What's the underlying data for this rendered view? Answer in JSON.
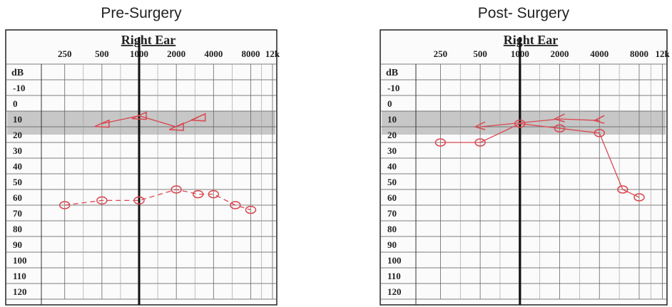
{
  "chart_data": [
    {
      "type": "line",
      "title": "Pre-Surgery",
      "subtitle": "Right Ear",
      "y_label": "dB",
      "log_x": true,
      "xlim": [
        180,
        13000
      ],
      "xticks": [
        250,
        500,
        1000,
        2000,
        4000,
        8000,
        {
          "value": 12000,
          "label": "12k"
        }
      ],
      "emphasized_x": 1000,
      "ylim": [
        -10,
        120
      ],
      "yticks": [
        -10,
        0,
        10,
        20,
        30,
        40,
        50,
        60,
        70,
        80,
        90,
        100,
        110,
        120
      ],
      "band": [
        5,
        15
      ],
      "grid": true,
      "series": [
        {
          "color": "#d9474f",
          "marker": "circle",
          "dashed": true,
          "x": [
            250,
            500,
            1000,
            2000,
            3000,
            4000,
            6000,
            8000
          ],
          "values": [
            65,
            62,
            62,
            55,
            58,
            58,
            65,
            68
          ]
        },
        {
          "color": "#d9474f",
          "marker": "triangle",
          "dashed": false,
          "x": [
            500,
            1000,
            2000,
            3000
          ],
          "values": [
            13,
            8,
            15,
            9
          ]
        }
      ]
    },
    {
      "type": "line",
      "title": "Post- Surgery",
      "subtitle": "Right Ear",
      "y_label": "dB",
      "log_x": true,
      "xlim": [
        180,
        13000
      ],
      "xticks": [
        250,
        500,
        1000,
        2000,
        4000,
        8000,
        {
          "value": 12000,
          "label": "12k"
        }
      ],
      "emphasized_x": 1000,
      "ylim": [
        -10,
        120
      ],
      "yticks": [
        -10,
        0,
        10,
        20,
        30,
        40,
        50,
        60,
        70,
        80,
        90,
        100,
        110,
        120
      ],
      "band": [
        5,
        15
      ],
      "grid": true,
      "series": [
        {
          "color": "#d9474f",
          "marker": "circle",
          "dashed": false,
          "x": [
            250,
            500,
            1000,
            2000,
            4000,
            6000,
            8000
          ],
          "values": [
            25,
            25,
            13,
            16,
            19,
            55,
            60
          ]
        },
        {
          "color": "#d9474f",
          "marker": "chevron",
          "dashed": false,
          "x": [
            500,
            2000,
            4000
          ],
          "values": [
            15,
            10,
            11
          ]
        }
      ]
    }
  ]
}
